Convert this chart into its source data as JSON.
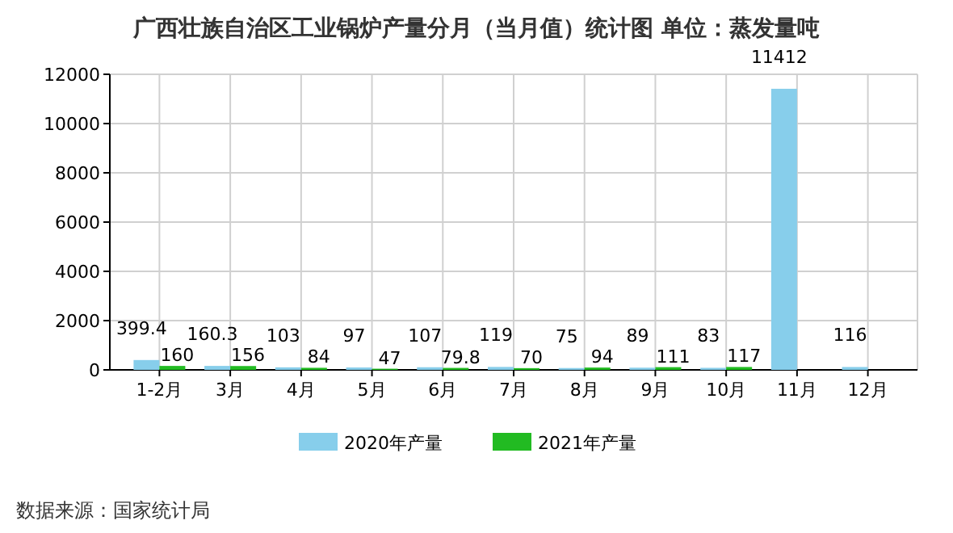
{
  "chart_data": {
    "type": "bar",
    "title": "广西壮族自治区工业锅炉产量分月（当月值）统计图 单位：蒸发量吨",
    "categories": [
      "1-2月",
      "3月",
      "4月",
      "5月",
      "6月",
      "7月",
      "8月",
      "9月",
      "10月",
      "11月",
      "12月"
    ],
    "series": [
      {
        "name": "2020年产量",
        "color": "#87ceeb",
        "values": [
          399.4,
          160.3,
          103,
          97,
          107,
          119,
          75,
          89,
          83,
          11412,
          116
        ]
      },
      {
        "name": "2021年产量",
        "color": "#22bb22",
        "values": [
          160,
          156,
          84,
          47,
          79.8,
          70,
          94,
          111,
          117,
          null,
          null
        ]
      }
    ],
    "ylim": [
      0,
      12000
    ],
    "yticks": [
      0,
      2000,
      4000,
      6000,
      8000,
      10000,
      12000
    ],
    "grid": true,
    "legend": "bottom",
    "data_labels": true,
    "annotations": [
      "数据来源：国家统计局"
    ]
  }
}
